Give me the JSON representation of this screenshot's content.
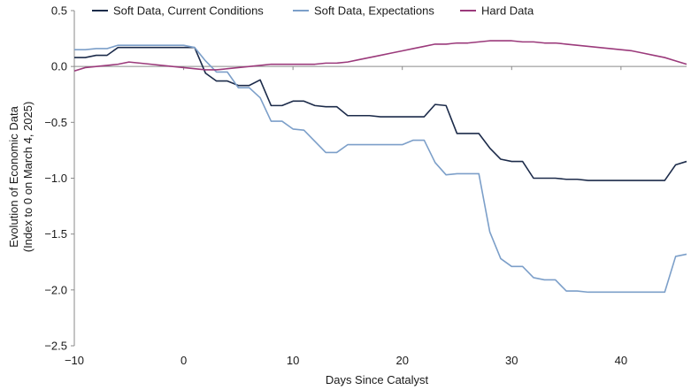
{
  "chart_data": {
    "type": "line",
    "title": "",
    "xlabel": "Days Since Catalyst",
    "ylabel_lines": [
      "Evolution of Economic Data",
      "(Index to 0 on March 4, 2025)"
    ],
    "xlim": [
      -10,
      46
    ],
    "ylim": [
      -2.5,
      0.5
    ],
    "xticks": [
      -10,
      0,
      10,
      20,
      30,
      40
    ],
    "xtick_labels": [
      "−10",
      "0",
      "10",
      "20",
      "30",
      "40"
    ],
    "yticks": [
      0.5,
      0.0,
      -0.5,
      -1.0,
      -1.5,
      -2.0,
      -2.5
    ],
    "ytick_labels": [
      "0.5",
      "0.0",
      "−0.5",
      "−1.0",
      "−1.5",
      "−2.0",
      "−2.5"
    ],
    "grid": false,
    "legend_position": "top",
    "series": [
      {
        "name": "Soft Data, Current Conditions",
        "color": "#1c2b4a",
        "points": [
          [
            -10,
            0.08
          ],
          [
            -9,
            0.08
          ],
          [
            -8,
            0.1
          ],
          [
            -7,
            0.1
          ],
          [
            -6,
            0.17
          ],
          [
            -5,
            0.17
          ],
          [
            -4,
            0.17
          ],
          [
            -3,
            0.17
          ],
          [
            -2,
            0.17
          ],
          [
            -1,
            0.17
          ],
          [
            0,
            0.17
          ],
          [
            1,
            0.17
          ],
          [
            2,
            -0.06
          ],
          [
            3,
            -0.13
          ],
          [
            4,
            -0.13
          ],
          [
            5,
            -0.17
          ],
          [
            6,
            -0.17
          ],
          [
            7,
            -0.12
          ],
          [
            8,
            -0.35
          ],
          [
            9,
            -0.35
          ],
          [
            10,
            -0.31
          ],
          [
            11,
            -0.31
          ],
          [
            12,
            -0.35
          ],
          [
            13,
            -0.36
          ],
          [
            14,
            -0.36
          ],
          [
            15,
            -0.44
          ],
          [
            16,
            -0.44
          ],
          [
            17,
            -0.44
          ],
          [
            18,
            -0.45
          ],
          [
            19,
            -0.45
          ],
          [
            20,
            -0.45
          ],
          [
            21,
            -0.45
          ],
          [
            22,
            -0.45
          ],
          [
            23,
            -0.34
          ],
          [
            24,
            -0.35
          ],
          [
            25,
            -0.6
          ],
          [
            26,
            -0.6
          ],
          [
            27,
            -0.6
          ],
          [
            28,
            -0.73
          ],
          [
            29,
            -0.83
          ],
          [
            30,
            -0.85
          ],
          [
            31,
            -0.85
          ],
          [
            32,
            -1.0
          ],
          [
            33,
            -1.0
          ],
          [
            34,
            -1.0
          ],
          [
            35,
            -1.01
          ],
          [
            36,
            -1.01
          ],
          [
            37,
            -1.02
          ],
          [
            38,
            -1.02
          ],
          [
            39,
            -1.02
          ],
          [
            40,
            -1.02
          ],
          [
            41,
            -1.02
          ],
          [
            42,
            -1.02
          ],
          [
            43,
            -1.02
          ],
          [
            44,
            -1.02
          ],
          [
            45,
            -0.88
          ],
          [
            46,
            -0.85
          ]
        ]
      },
      {
        "name": "Soft Data, Expectations",
        "color": "#7c9fc9",
        "points": [
          [
            -10,
            0.15
          ],
          [
            -9,
            0.15
          ],
          [
            -8,
            0.16
          ],
          [
            -7,
            0.16
          ],
          [
            -6,
            0.19
          ],
          [
            -5,
            0.19
          ],
          [
            -4,
            0.19
          ],
          [
            -3,
            0.19
          ],
          [
            -2,
            0.19
          ],
          [
            -1,
            0.19
          ],
          [
            0,
            0.19
          ],
          [
            1,
            0.17
          ],
          [
            2,
            0.05
          ],
          [
            3,
            -0.05
          ],
          [
            4,
            -0.05
          ],
          [
            5,
            -0.19
          ],
          [
            6,
            -0.19
          ],
          [
            7,
            -0.28
          ],
          [
            8,
            -0.49
          ],
          [
            9,
            -0.49
          ],
          [
            10,
            -0.56
          ],
          [
            11,
            -0.57
          ],
          [
            12,
            -0.67
          ],
          [
            13,
            -0.77
          ],
          [
            14,
            -0.77
          ],
          [
            15,
            -0.7
          ],
          [
            16,
            -0.7
          ],
          [
            17,
            -0.7
          ],
          [
            18,
            -0.7
          ],
          [
            19,
            -0.7
          ],
          [
            20,
            -0.7
          ],
          [
            21,
            -0.66
          ],
          [
            22,
            -0.66
          ],
          [
            23,
            -0.86
          ],
          [
            24,
            -0.97
          ],
          [
            25,
            -0.96
          ],
          [
            26,
            -0.96
          ],
          [
            27,
            -0.96
          ],
          [
            28,
            -1.48
          ],
          [
            29,
            -1.72
          ],
          [
            30,
            -1.79
          ],
          [
            31,
            -1.79
          ],
          [
            32,
            -1.89
          ],
          [
            33,
            -1.91
          ],
          [
            34,
            -1.91
          ],
          [
            35,
            -2.01
          ],
          [
            36,
            -2.01
          ],
          [
            37,
            -2.02
          ],
          [
            38,
            -2.02
          ],
          [
            39,
            -2.02
          ],
          [
            40,
            -2.02
          ],
          [
            41,
            -2.02
          ],
          [
            42,
            -2.02
          ],
          [
            43,
            -2.02
          ],
          [
            44,
            -2.02
          ],
          [
            45,
            -1.7
          ],
          [
            46,
            -1.68
          ]
        ]
      },
      {
        "name": "Hard Data",
        "color": "#9b3a7b",
        "points": [
          [
            -10,
            -0.04
          ],
          [
            -9,
            -0.01
          ],
          [
            -8,
            0.0
          ],
          [
            -7,
            0.01
          ],
          [
            -6,
            0.02
          ],
          [
            -5,
            0.04
          ],
          [
            -4,
            0.03
          ],
          [
            -3,
            0.02
          ],
          [
            -2,
            0.01
          ],
          [
            -1,
            0.0
          ],
          [
            0,
            -0.01
          ],
          [
            1,
            -0.02
          ],
          [
            2,
            -0.03
          ],
          [
            3,
            -0.03
          ],
          [
            4,
            -0.02
          ],
          [
            5,
            -0.01
          ],
          [
            6,
            0.0
          ],
          [
            7,
            0.01
          ],
          [
            8,
            0.02
          ],
          [
            9,
            0.02
          ],
          [
            10,
            0.02
          ],
          [
            11,
            0.02
          ],
          [
            12,
            0.02
          ],
          [
            13,
            0.03
          ],
          [
            14,
            0.03
          ],
          [
            15,
            0.04
          ],
          [
            16,
            0.06
          ],
          [
            17,
            0.08
          ],
          [
            18,
            0.1
          ],
          [
            19,
            0.12
          ],
          [
            20,
            0.14
          ],
          [
            21,
            0.16
          ],
          [
            22,
            0.18
          ],
          [
            23,
            0.2
          ],
          [
            24,
            0.2
          ],
          [
            25,
            0.21
          ],
          [
            26,
            0.21
          ],
          [
            27,
            0.22
          ],
          [
            28,
            0.23
          ],
          [
            29,
            0.23
          ],
          [
            30,
            0.23
          ],
          [
            31,
            0.22
          ],
          [
            32,
            0.22
          ],
          [
            33,
            0.21
          ],
          [
            34,
            0.21
          ],
          [
            35,
            0.2
          ],
          [
            36,
            0.19
          ],
          [
            37,
            0.18
          ],
          [
            38,
            0.17
          ],
          [
            39,
            0.16
          ],
          [
            40,
            0.15
          ],
          [
            41,
            0.14
          ],
          [
            42,
            0.12
          ],
          [
            43,
            0.1
          ],
          [
            44,
            0.08
          ],
          [
            45,
            0.05
          ],
          [
            46,
            0.02
          ]
        ]
      }
    ]
  }
}
